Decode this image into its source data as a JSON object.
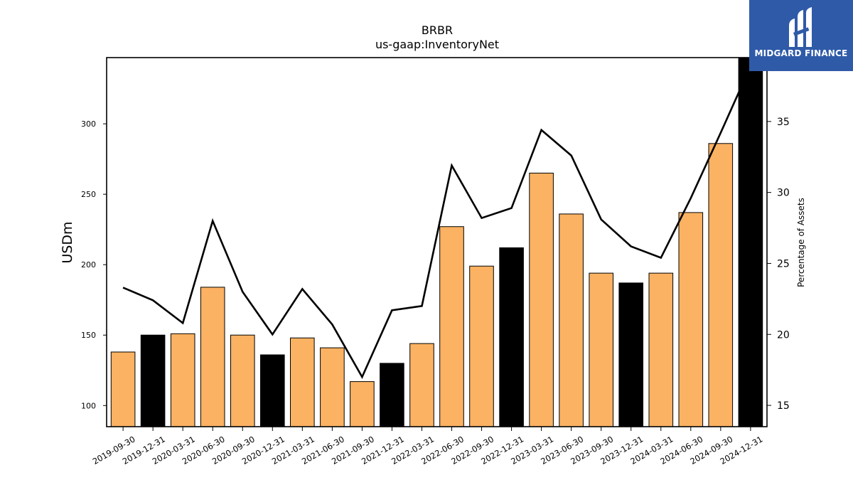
{
  "chart_data": {
    "type": "bar",
    "title": "BRBR",
    "subtitle": "us-gaap:InventoryNet",
    "ylabel": "USDm",
    "y2label": "Percentage of Assets",
    "ylim": [
      85,
      347
    ],
    "y2lim": [
      13.5,
      39.5
    ],
    "yticks": [
      100,
      150,
      200,
      250,
      300
    ],
    "y2ticks": [
      15,
      20,
      25,
      30,
      35
    ],
    "categories": [
      "2019-09-30",
      "2019-12-31",
      "2020-03-31",
      "2020-06-30",
      "2020-09-30",
      "2020-12-31",
      "2021-03-31",
      "2021-06-30",
      "2021-09-30",
      "2021-12-31",
      "2022-03-31",
      "2022-06-30",
      "2022-09-30",
      "2022-12-31",
      "2023-03-31",
      "2023-06-30",
      "2023-09-30",
      "2023-12-31",
      "2024-03-31",
      "2024-06-30",
      "2024-09-30",
      "2024-12-31"
    ],
    "series": [
      {
        "type": "bar",
        "axis": "left",
        "values": [
          138,
          150,
          151,
          184,
          150,
          136,
          148,
          141,
          117,
          130,
          144,
          227,
          199,
          212,
          265,
          236,
          194,
          187,
          194,
          237,
          286,
          350
        ],
        "fiscal_year_end_color": "#000000",
        "color": "#fbb262"
      },
      {
        "type": "line",
        "axis": "right",
        "values": [
          23.3,
          22.4,
          20.8,
          28.0,
          23.0,
          20.0,
          23.2,
          20.7,
          17.0,
          21.7,
          22.0,
          31.9,
          28.2,
          28.9,
          34.4,
          32.6,
          28.1,
          26.2,
          25.4,
          29.6,
          34.2,
          38.9
        ],
        "color": "#000000"
      }
    ],
    "grid": false,
    "legend": "none"
  },
  "logo": {
    "text": "MIDGARD FINANCE",
    "background": "#2f5aa8"
  }
}
